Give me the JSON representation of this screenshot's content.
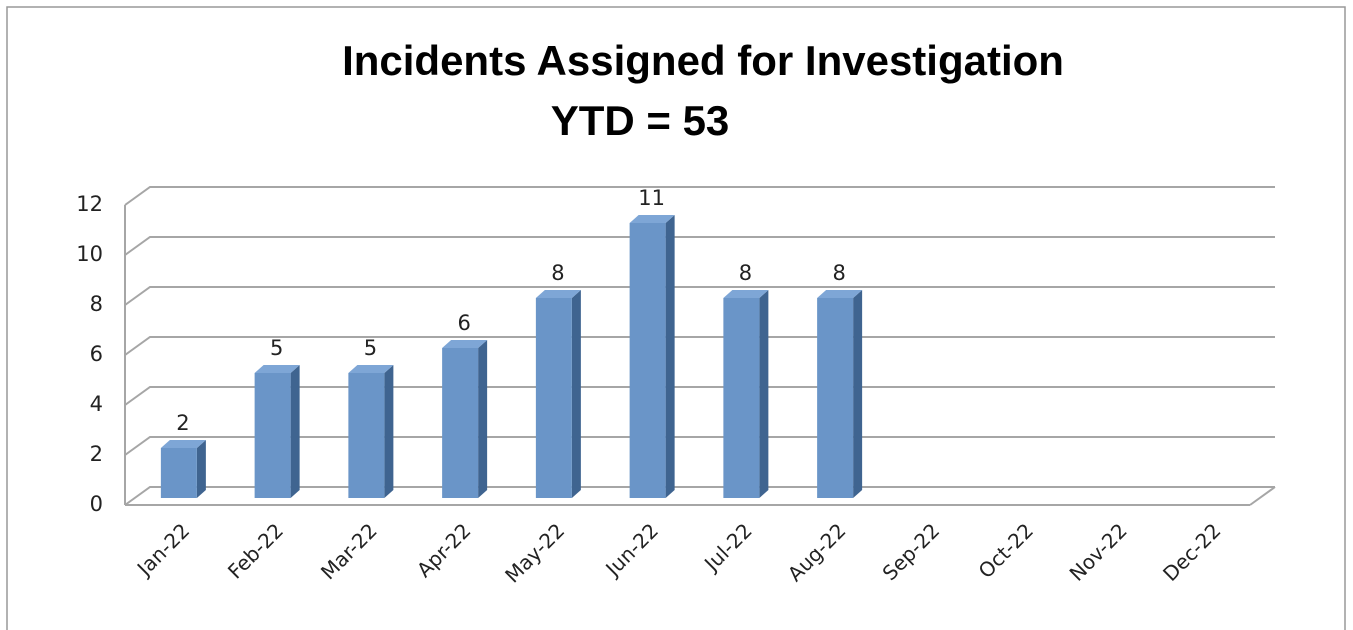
{
  "chart_data": {
    "type": "bar3d",
    "title": "Incidents Assigned for Investigation",
    "subtitle": "YTD = 53",
    "categories": [
      "Jan-22",
      "Feb-22",
      "Mar-22",
      "Apr-22",
      "May-22",
      "Jun-22",
      "Jul-22",
      "Aug-22",
      "Sep-22",
      "Oct-22",
      "Nov-22",
      "Dec-22"
    ],
    "values": [
      2,
      5,
      5,
      6,
      8,
      11,
      8,
      8,
      null,
      null,
      null,
      null
    ],
    "color": "#6a95c8",
    "ylim": [
      0,
      12
    ],
    "yticks": [
      0,
      2,
      4,
      6,
      8,
      10,
      12
    ],
    "grid": true
  }
}
